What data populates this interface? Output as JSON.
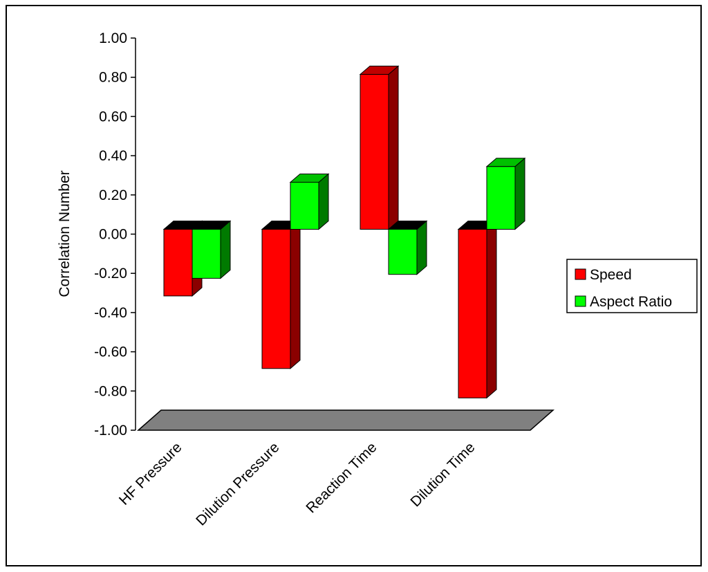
{
  "chart_data": {
    "type": "bar",
    "style": "3d",
    "categories": [
      "HF Pressure",
      "Dilution Pressure",
      "Reaction Time",
      "Dilution Time"
    ],
    "series": [
      {
        "name": "Speed",
        "values": [
          -0.34,
          -0.71,
          0.79,
          -0.86
        ],
        "color": "#ff0000",
        "side_color": "#8b0000",
        "top_color": "#c00000"
      },
      {
        "name": "Aspect Ratio",
        "values": [
          -0.25,
          0.24,
          -0.23,
          0.32
        ],
        "color": "#00ff00",
        "side_color": "#007a00",
        "top_color": "#00c000"
      }
    ],
    "ylabel": "Correlation Number",
    "ylim": [
      -1.0,
      1.0
    ],
    "yticks": [
      "1.00",
      "0.80",
      "0.60",
      "0.40",
      "0.20",
      "0.00",
      "-0.20",
      "-0.40",
      "-0.60",
      "-0.80",
      "-1.00"
    ],
    "legend_position": "right",
    "floor_color": "#808080"
  }
}
